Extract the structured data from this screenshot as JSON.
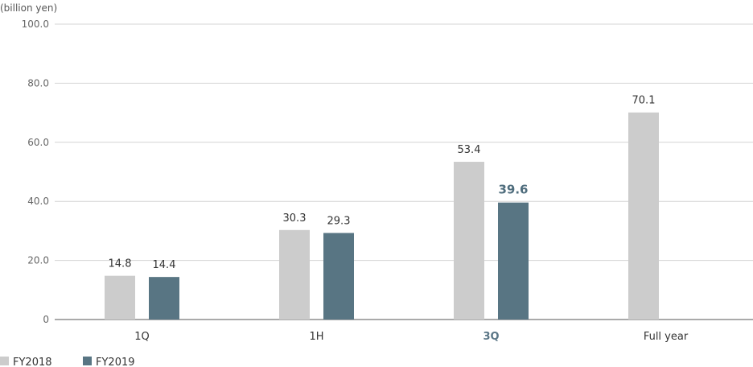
{
  "chart_data": {
    "type": "bar",
    "unit_label": "(billion yen)",
    "categories": [
      "1Q",
      "1H",
      "3Q",
      "Full year"
    ],
    "highlight_category": "3Q",
    "series": [
      {
        "name": "FY2018",
        "values": [
          14.8,
          30.3,
          53.4,
          70.1
        ],
        "labels": [
          "14.8",
          "30.3",
          "53.4",
          "70.1"
        ],
        "color": "#cccccc"
      },
      {
        "name": "FY2019",
        "values": [
          14.4,
          29.3,
          39.6,
          null
        ],
        "labels": [
          "14.4",
          "29.3",
          "39.6",
          ""
        ],
        "color": "#587583"
      }
    ],
    "highlight_value_color": "#4f6d7d",
    "ylim": [
      0,
      100
    ],
    "yticks": [
      0,
      20,
      40,
      60,
      80,
      100
    ],
    "ytick_labels": [
      "0",
      "20.0",
      "40.0",
      "60.0",
      "80.0",
      "100.0"
    ],
    "grid": true,
    "legend_position": "bottom-left"
  }
}
